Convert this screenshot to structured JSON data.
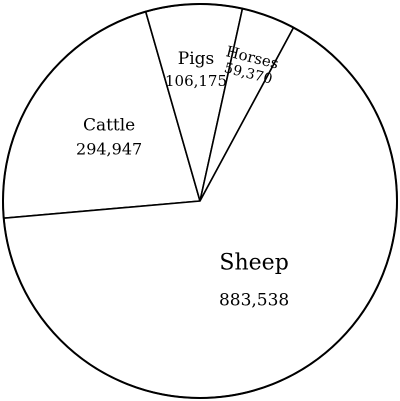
{
  "chart_data": {
    "type": "pie",
    "title": "",
    "slices": [
      {
        "label": "Cattle",
        "value": 294947,
        "value_text": "294,947"
      },
      {
        "label": "Pigs",
        "value": 106175,
        "value_text": "106,175"
      },
      {
        "label": "Horses",
        "value": 59370,
        "value_text": "59,370"
      },
      {
        "label": "Sheep",
        "value": 883538,
        "value_text": "883,538"
      }
    ],
    "legend": "none",
    "colors": {
      "fill": "#ffffff",
      "stroke": "#000000"
    }
  }
}
